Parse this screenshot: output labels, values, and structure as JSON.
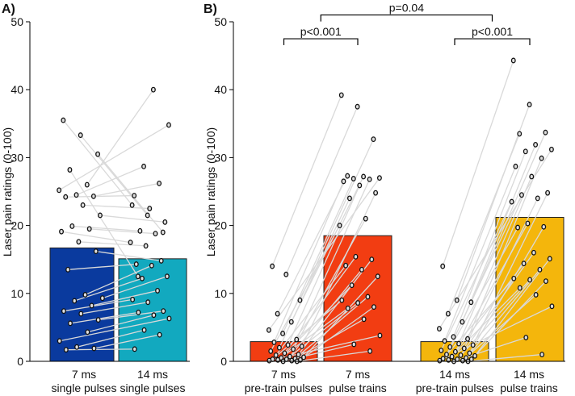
{
  "chart_data": [
    {
      "panel": "A)",
      "type": "bar",
      "ylabel": "Laser pain ratings (0-100)",
      "ylim": [
        0,
        50
      ],
      "yticks": [
        0,
        10,
        20,
        30,
        40,
        50
      ],
      "grid": false,
      "categories": [
        {
          "line1": "7 ms",
          "line2": "single pulses"
        },
        {
          "line1": "14 ms",
          "line2": "single pulses"
        }
      ],
      "bars": [
        {
          "value": 16.7,
          "color": "#0a3a9e"
        },
        {
          "value": 15.1,
          "color": "#12a9bf"
        }
      ],
      "paired_points": [
        [
          35.5,
          23.0
        ],
        [
          33.3,
          21.5
        ],
        [
          30.5,
          19.0
        ],
        [
          28.2,
          12.5
        ],
        [
          26.0,
          40.0
        ],
        [
          25.2,
          34.8
        ],
        [
          24.5,
          28.7
        ],
        [
          24.3,
          26.2
        ],
        [
          24.2,
          24.4
        ],
        [
          23.0,
          22.5
        ],
        [
          21.5,
          20.5
        ],
        [
          19.9,
          19.2
        ],
        [
          19.5,
          18.8
        ],
        [
          19.1,
          17.5
        ],
        [
          17.6,
          17.0
        ],
        [
          16.2,
          14.8
        ],
        [
          13.5,
          14.3
        ],
        [
          9.8,
          14.1
        ],
        [
          9.3,
          12.5
        ],
        [
          8.9,
          12.2
        ],
        [
          8.2,
          10.4
        ],
        [
          7.4,
          9.1
        ],
        [
          7.0,
          8.7
        ],
        [
          6.1,
          7.4
        ],
        [
          5.6,
          7.2
        ],
        [
          4.3,
          6.8
        ],
        [
          3.0,
          6.3
        ],
        [
          2.1,
          4.6
        ],
        [
          1.9,
          3.9
        ],
        [
          1.7,
          1.8
        ]
      ]
    },
    {
      "panel": "B)",
      "type": "bar",
      "ylabel": "Laser pain ratings (0-100)",
      "ylim": [
        0,
        50
      ],
      "yticks": [
        0,
        10,
        20,
        30,
        40,
        50
      ],
      "grid": false,
      "categories": [
        {
          "line1": "7 ms",
          "line2": "pre-train pulses"
        },
        {
          "line1": "7 ms",
          "line2": "pulse trains"
        },
        {
          "line1": "14 ms",
          "line2": "pre-train pulses"
        },
        {
          "line1": "14 ms",
          "line2": "pulse trains"
        }
      ],
      "bars": [
        {
          "value": 2.9,
          "color": "#f23d12"
        },
        {
          "value": 18.5,
          "color": "#f23d12"
        },
        {
          "value": 2.9,
          "color": "#f4b60c"
        },
        {
          "value": 21.2,
          "color": "#f4b60c"
        }
      ],
      "pairs": [
        {
          "from_bar": 0,
          "to_bar": 1,
          "points": [
            [
              14.0,
              39.2
            ],
            [
              12.8,
              37.5
            ],
            [
              9.0,
              32.7
            ],
            [
              7.0,
              27.3
            ],
            [
              5.8,
              27.2
            ],
            [
              4.6,
              27.0
            ],
            [
              4.1,
              26.9
            ],
            [
              3.2,
              26.8
            ],
            [
              2.8,
              26.5
            ],
            [
              2.4,
              25.9
            ],
            [
              2.2,
              24.8
            ],
            [
              2.0,
              24.0
            ],
            [
              1.8,
              21.0
            ],
            [
              1.5,
              20.0
            ],
            [
              1.2,
              15.4
            ],
            [
              1.0,
              15.0
            ],
            [
              0.9,
              14.1
            ],
            [
              0.7,
              13.5
            ],
            [
              0.6,
              12.5
            ],
            [
              0.5,
              11.2
            ],
            [
              0.4,
              9.5
            ],
            [
              0.3,
              9.0
            ],
            [
              0.3,
              8.6
            ],
            [
              0.2,
              8.0
            ],
            [
              0.2,
              7.8
            ],
            [
              0.1,
              6.2
            ],
            [
              0.1,
              3.8
            ],
            [
              0.0,
              2.5
            ],
            [
              0.0,
              1.5
            ]
          ]
        },
        {
          "from_bar": 2,
          "to_bar": 3,
          "points": [
            [
              14.0,
              44.3
            ],
            [
              9.0,
              37.8
            ],
            [
              8.7,
              33.7
            ],
            [
              7.0,
              33.5
            ],
            [
              5.8,
              31.9
            ],
            [
              4.8,
              31.2
            ],
            [
              3.6,
              30.9
            ],
            [
              3.3,
              29.9
            ],
            [
              3.0,
              28.7
            ],
            [
              2.6,
              27.2
            ],
            [
              2.4,
              24.8
            ],
            [
              2.1,
              24.5
            ],
            [
              1.9,
              24.0
            ],
            [
              1.6,
              23.5
            ],
            [
              1.4,
              20.3
            ],
            [
              1.2,
              19.8
            ],
            [
              1.0,
              19.7
            ],
            [
              0.9,
              16.0
            ],
            [
              0.8,
              15.1
            ],
            [
              0.7,
              14.4
            ],
            [
              0.5,
              13.5
            ],
            [
              0.4,
              12.2
            ],
            [
              0.3,
              12.0
            ],
            [
              0.3,
              11.8
            ],
            [
              0.2,
              10.8
            ],
            [
              0.1,
              9.8
            ],
            [
              0.1,
              8.1
            ],
            [
              0.0,
              3.5
            ],
            [
              0.0,
              1.0
            ]
          ]
        }
      ],
      "significance": [
        {
          "from_bar": 0,
          "to_bar": 1,
          "y": 47.5,
          "label": "p<0.001"
        },
        {
          "from_bar": 2,
          "to_bar": 3,
          "y": 47.5,
          "label": "p<0.001"
        },
        {
          "from_mid": [
            0,
            1
          ],
          "to_mid": [
            2,
            3
          ],
          "y": 51.0,
          "label": "p=0.04"
        }
      ]
    }
  ]
}
